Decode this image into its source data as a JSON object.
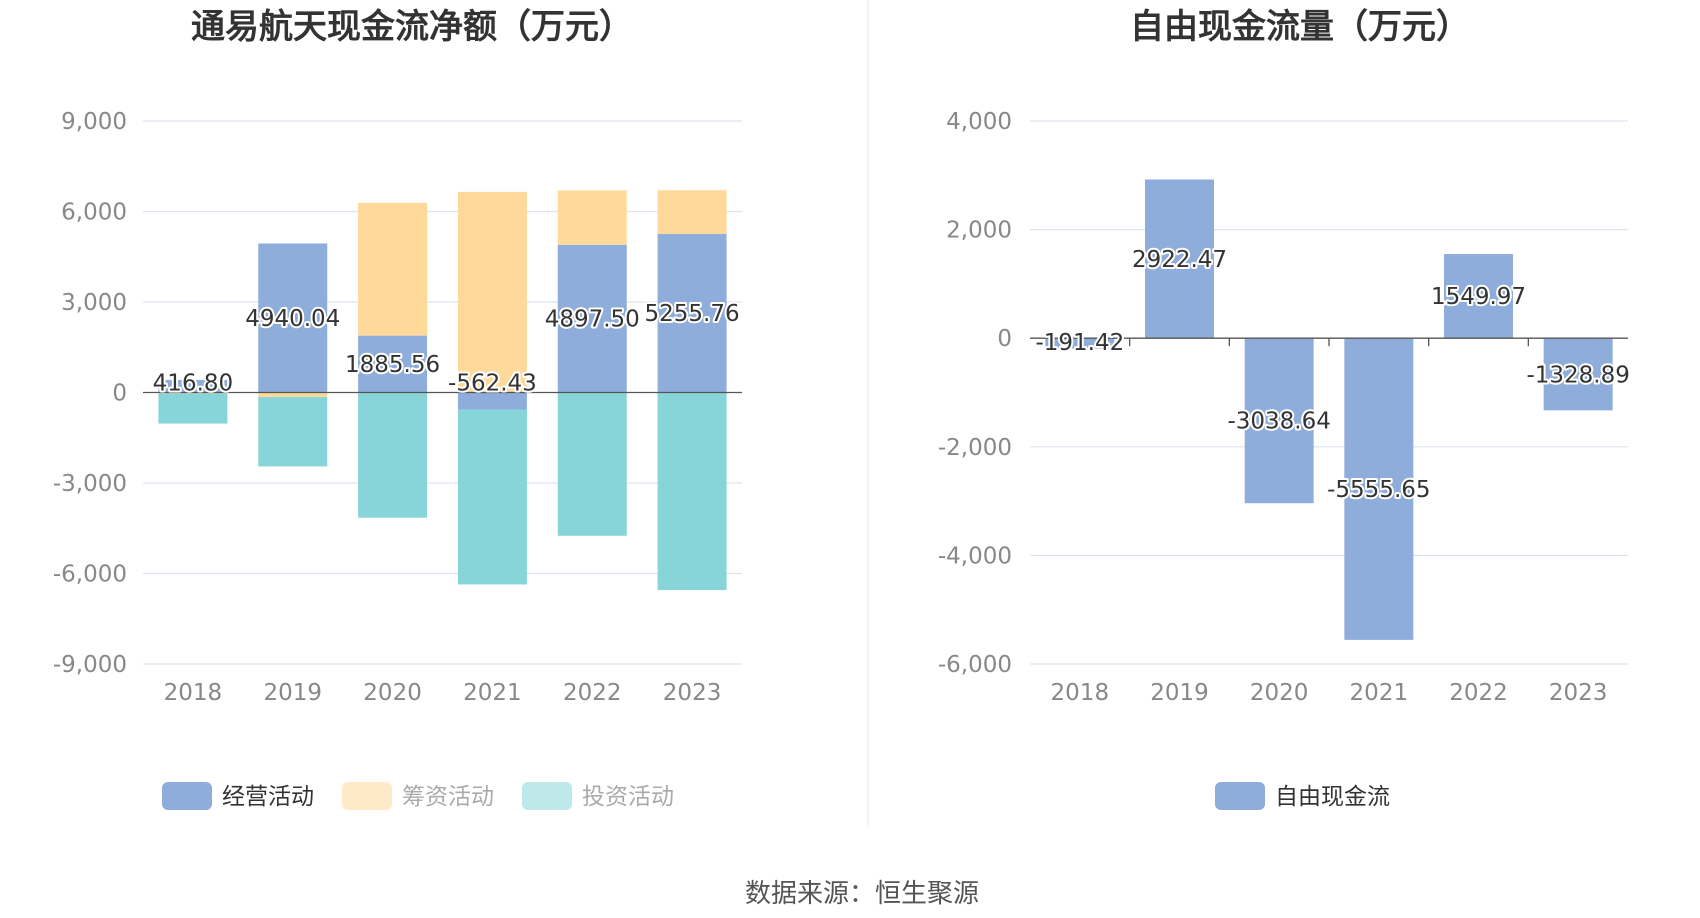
{
  "chart_data": [
    {
      "type": "bar",
      "stacked": true,
      "title": "通易航天现金流净额（万元）",
      "categories": [
        "2018",
        "2019",
        "2020",
        "2021",
        "2022",
        "2023"
      ],
      "ylim": [
        -9000,
        9000
      ],
      "yticks": [
        9000,
        6000,
        3000,
        0,
        -3000,
        -6000,
        -9000
      ],
      "ytick_labels": [
        "9,000",
        "6,000",
        "3,000",
        "0",
        "-3,000",
        "-6,000",
        "-9,000"
      ],
      "grid": true,
      "legend_position": "bottom",
      "series": [
        {
          "name": "经营活动",
          "color": "#8eadda",
          "values": [
            416.8,
            4940.04,
            1885.56,
            -562.43,
            4897.5,
            5255.76
          ],
          "show_labels": true,
          "labels": [
            "416.80",
            "4940.04",
            "1885.56",
            "-562.43",
            "4897.50",
            "5255.76"
          ]
        },
        {
          "name": "筹资活动",
          "color": "#ffd99a",
          "values": [
            -30,
            -150,
            4400,
            6650,
            1800,
            1450
          ],
          "show_labels": false
        },
        {
          "name": "投资活动",
          "color": "#88d5d9",
          "values": [
            -1000,
            -2300,
            -4150,
            -5800,
            -4750,
            -6550
          ],
          "show_labels": false
        }
      ]
    },
    {
      "type": "bar",
      "title": "自由现金流量（万元）",
      "categories": [
        "2018",
        "2019",
        "2020",
        "2021",
        "2022",
        "2023"
      ],
      "ylim": [
        -6000,
        4000
      ],
      "yticks": [
        4000,
        2000,
        0,
        -2000,
        -4000,
        -6000
      ],
      "ytick_labels": [
        "4,000",
        "2,000",
        "0",
        "-2,000",
        "-4,000",
        "-6,000"
      ],
      "grid": true,
      "legend_position": "bottom",
      "series": [
        {
          "name": "自由现金流",
          "color": "#8eadda",
          "values": [
            -191.42,
            2922.47,
            -3038.64,
            -5555.65,
            1549.97,
            -1328.89
          ],
          "show_labels": true,
          "labels": [
            "-191.42",
            "2922.47",
            "-3038.64",
            "-5555.65",
            "1549.97",
            "-1328.89"
          ]
        }
      ]
    }
  ],
  "legend_colors": {
    "muted_text": "#aaaaaa",
    "active_text": "#333333"
  },
  "source": "数据来源：恒生聚源"
}
